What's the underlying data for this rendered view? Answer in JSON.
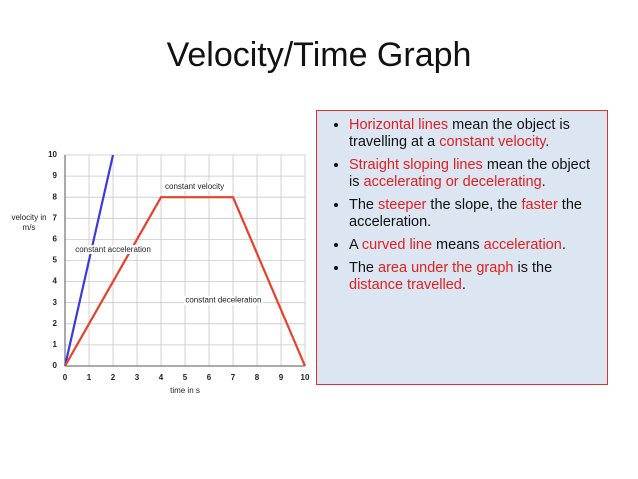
{
  "title": "Velocity/Time Graph",
  "chart_data": {
    "type": "line",
    "xlabel": "time in s",
    "ylabel": "velocity in m/s",
    "xlim": [
      0,
      10
    ],
    "xticks": [
      0,
      1,
      2,
      3,
      4,
      5,
      6,
      7,
      8,
      9,
      10
    ],
    "ylim": [
      0,
      10
    ],
    "yticks": [
      0,
      1,
      2,
      3,
      4,
      5,
      6,
      7,
      8,
      9,
      10
    ],
    "grid": true,
    "series": [
      {
        "color": "#3b3bdb",
        "x": [
          0,
          2
        ],
        "values": [
          0,
          10
        ]
      },
      {
        "color": "#e8402a",
        "x": [
          0,
          4,
          7,
          10
        ],
        "values": [
          0,
          8,
          8,
          0
        ]
      }
    ],
    "annotations": [
      {
        "text": "constant velocity",
        "x": 5.4,
        "y": 8.5
      },
      {
        "text": "constant acceleration",
        "x": 2,
        "y": 5.5
      },
      {
        "text": "constant deceleration",
        "x": 6.6,
        "y": 3.1
      }
    ]
  },
  "bullets": [
    [
      {
        "text": "Horizontal lines",
        "color": "#e02020"
      },
      {
        "text": " mean the object is travelling at a "
      },
      {
        "text": "constant velocity",
        "color": "#e02020"
      },
      {
        "text": "."
      }
    ],
    [
      {
        "text": "Straight sloping lines",
        "color": "#e02020"
      },
      {
        "text": " mean the object is "
      },
      {
        "text": "accelerating or decelerating",
        "color": "#e02020"
      },
      {
        "text": "."
      }
    ],
    [
      {
        "text": "The "
      },
      {
        "text": "steeper",
        "color": "#e02020"
      },
      {
        "text": " the slope, the "
      },
      {
        "text": "faster",
        "color": "#e02020"
      },
      {
        "text": " the acceleration."
      }
    ],
    [
      {
        "text": "A "
      },
      {
        "text": "curved line",
        "color": "#e02020"
      },
      {
        "text": " means "
      },
      {
        "text": "acceleration",
        "color": "#e02020"
      },
      {
        "text": "."
      }
    ],
    [
      {
        "text": "The "
      },
      {
        "text": "area under the graph",
        "color": "#e02020"
      },
      {
        "text": " is the "
      },
      {
        "text": "distance travelled",
        "color": "#e02020"
      },
      {
        "text": "."
      }
    ]
  ]
}
